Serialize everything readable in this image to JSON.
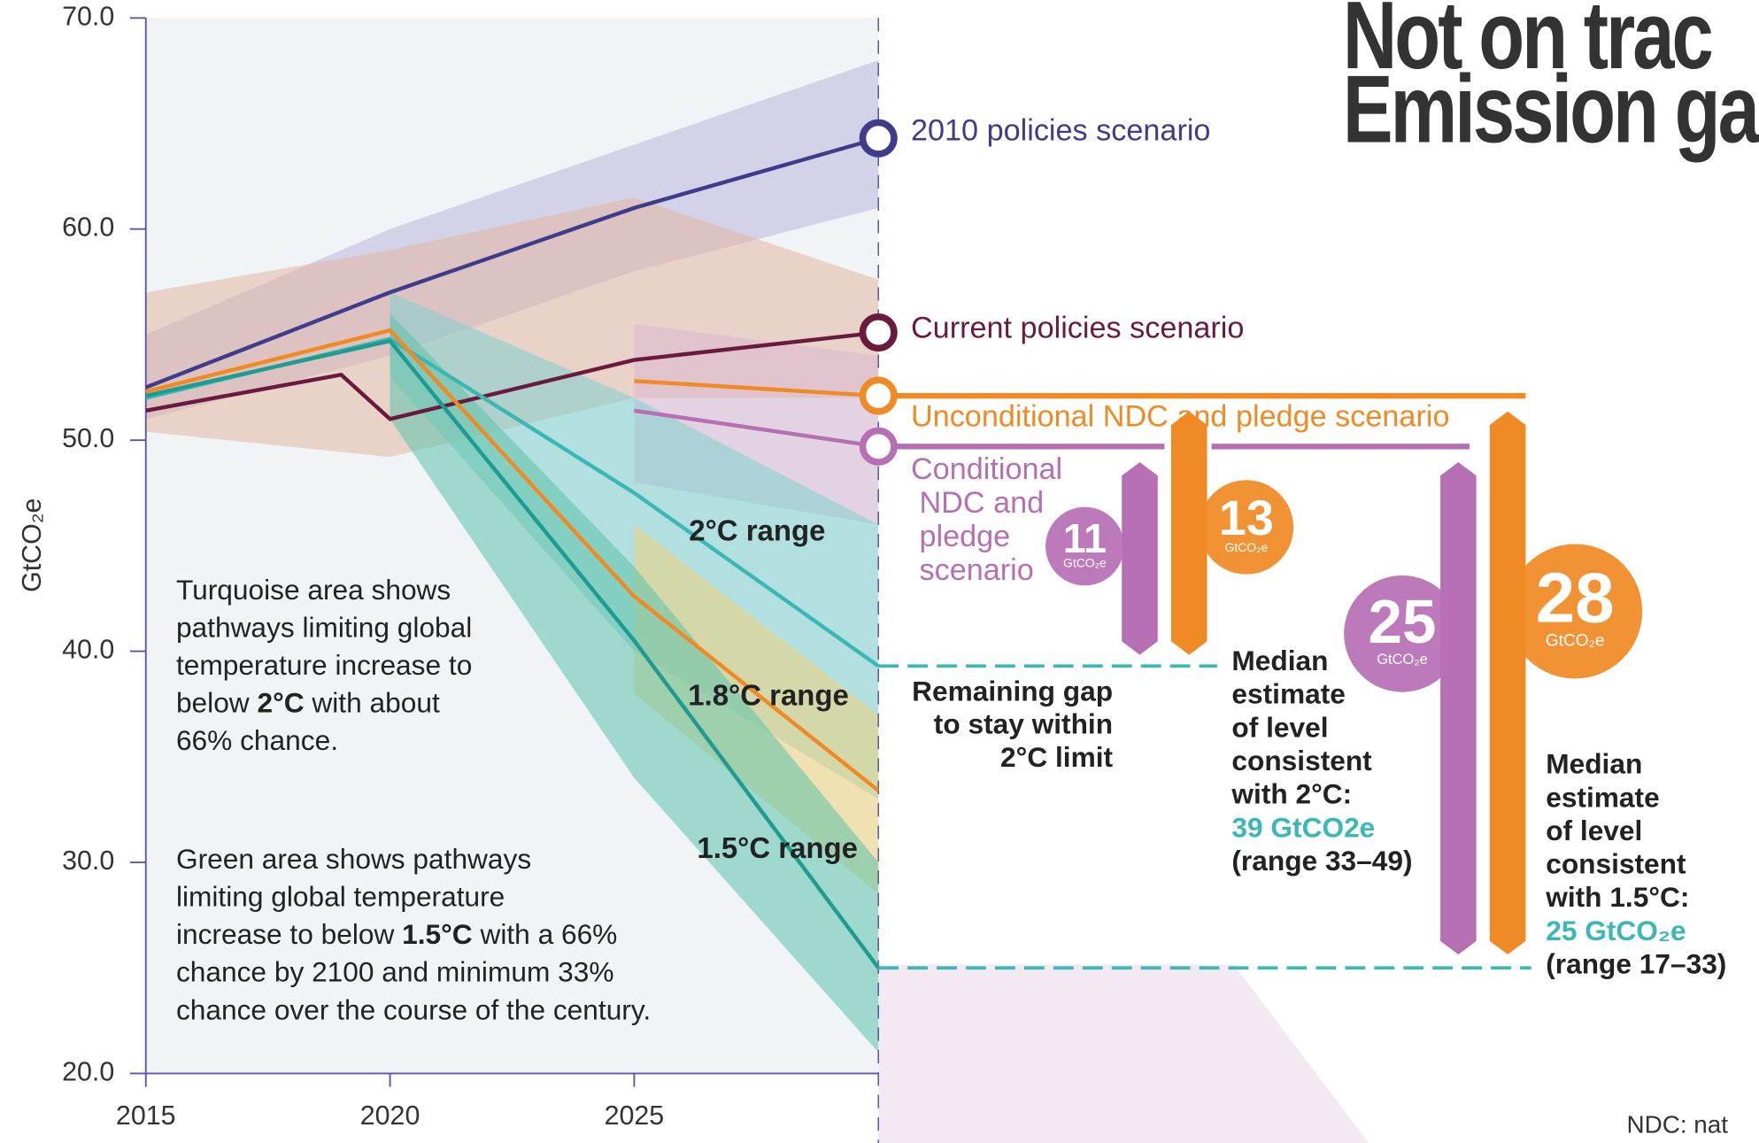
{
  "chart_data": {
    "type": "line",
    "title_lines": [
      "Not on trac",
      "Emission ga"
    ],
    "ylabel": "GtCO₂e",
    "footnote": "NDC: nat",
    "xlim": [
      2015,
      2030
    ],
    "xticks": [
      2015,
      2020,
      2025
    ],
    "ylim": [
      20,
      70
    ],
    "yticks": [
      {
        "value": 20,
        "label": "20.0"
      },
      {
        "value": 30,
        "label": "30.0"
      },
      {
        "value": 40,
        "label": "40.0"
      },
      {
        "value": 50,
        "label": "50.0"
      },
      {
        "value": 60,
        "label": "60.0"
      },
      {
        "value": 70,
        "label": "70.0"
      }
    ],
    "bands": [
      {
        "color": "#b9b7de",
        "x": [
          2015,
          2020,
          2025,
          2030
        ],
        "lower": [
          51,
          54,
          58,
          61
        ],
        "upper": [
          55,
          60,
          64,
          68
        ]
      },
      {
        "color": "#e3b7a3",
        "x": [
          2015,
          2020,
          2025,
          2030
        ],
        "lower": [
          50.4,
          49.2,
          52,
          52
        ],
        "upper": [
          57,
          59,
          61.5,
          57.6
        ]
      },
      {
        "color": "#d9b6cf",
        "x": [
          2025,
          2030
        ],
        "lower": [
          48,
          46
        ],
        "upper": [
          55.5,
          54
        ]
      },
      {
        "color": "#7fd0cf",
        "x": [
          2020,
          2025,
          2030
        ],
        "lower": [
          53,
          40,
          33
        ],
        "upper": [
          57,
          52,
          46
        ]
      },
      {
        "color": "#f0d27a",
        "x": [
          2025,
          2030
        ],
        "lower": [
          38,
          28.5
        ],
        "upper": [
          46,
          37
        ]
      },
      {
        "color": "#5cc2ac",
        "x": [
          2020,
          2025,
          2030
        ],
        "lower": [
          51,
          34,
          21
        ],
        "upper": [
          56,
          44,
          30
        ]
      }
    ],
    "series": [
      {
        "name": "2010 policies scenario",
        "color": "#3f3c8c",
        "x": [
          2015,
          2020,
          2025,
          2030
        ],
        "values": [
          52.5,
          57,
          61,
          64.3
        ]
      },
      {
        "name": "Current policies scenario",
        "color": "#6b1a3f",
        "x": [
          2015,
          2019,
          2020,
          2025,
          2030
        ],
        "values": [
          51.4,
          53.1,
          51,
          53.8,
          55.1
        ]
      },
      {
        "name": "Unconditional NDC and pledge scenario",
        "color": "#f08a24",
        "x": [
          2025,
          2030
        ],
        "values": [
          52.8,
          52.1
        ]
      },
      {
        "name": "Conditional NDC and pledge scenario",
        "color": "#b76fb4",
        "x": [
          2025,
          2030
        ],
        "values": [
          51.4,
          49.7
        ]
      },
      {
        "name": "2°C range",
        "color": "#3bb8b5",
        "x": [
          2015,
          2020,
          2025,
          2030
        ],
        "values": [
          52,
          54.8,
          47.5,
          39.3
        ]
      },
      {
        "name": "1.8°C range",
        "color": "#f08a24",
        "x": [
          2015,
          2020,
          2025,
          2030
        ],
        "values": [
          52.3,
          55.2,
          42.6,
          33.4
        ]
      },
      {
        "name": "1.5°C range",
        "color": "#1f9b91",
        "x": [
          2015,
          2020,
          2025,
          2030
        ],
        "values": [
          52.1,
          54.7,
          40.5,
          25
        ]
      }
    ],
    "gaps": [
      {
        "value": 11,
        "unit": "GtCO₂e",
        "from": 49.7,
        "to": 39.3,
        "color": "#b76fb4"
      },
      {
        "value": 13,
        "unit": "GtCO₂e",
        "from": 52.1,
        "to": 39.3,
        "color": "#f08a24"
      },
      {
        "value": 25,
        "unit": "GtCO₂e",
        "from": 49.7,
        "to": 25,
        "color": "#b76fb4"
      },
      {
        "value": 28,
        "unit": "GtCO₂e",
        "from": 52.1,
        "to": 25,
        "color": "#f08a24"
      }
    ],
    "levels": [
      {
        "value": 39.3,
        "color": "#3bb8b5"
      },
      {
        "value": 25,
        "color": "#3bb8b5"
      }
    ],
    "notes": [
      {
        "lines": [
          [
            "Turquoise area shows"
          ],
          [
            "pathways limiting global"
          ],
          [
            "temperature increase to"
          ],
          [
            "below ",
            "2°C",
            " with about"
          ],
          [
            "66% chance."
          ]
        ]
      },
      {
        "lines": [
          [
            "Green area shows pathways"
          ],
          [
            "limiting global temperature"
          ],
          [
            "increase to below ",
            "1.5°C",
            " with a 66%"
          ],
          [
            "chance by 2100 and minimum 33%"
          ],
          [
            "chance over the course of the century."
          ]
        ]
      }
    ],
    "gap_note": [
      "Remaining gap",
      "to stay within",
      "2°C limit"
    ],
    "medians": [
      {
        "lines": [
          {
            "text": "Median"
          },
          {
            "text": "estimate"
          },
          {
            "text": "of level"
          },
          {
            "text": "consistent"
          },
          {
            "text": "with 2°C:"
          },
          {
            "text": "39 GtCO2e",
            "color": "#3bb8b5"
          },
          {
            "text": "(range 33–49)"
          }
        ]
      },
      {
        "lines": [
          {
            "text": "Median"
          },
          {
            "text": "estimate"
          },
          {
            "text": "of level"
          },
          {
            "text": "consistent"
          },
          {
            "text": "with 1.5°C:"
          },
          {
            "text": "25 GtCO₂e",
            "color": "#3bb8b5"
          },
          {
            "text": "(range 17–33)"
          }
        ]
      }
    ]
  }
}
